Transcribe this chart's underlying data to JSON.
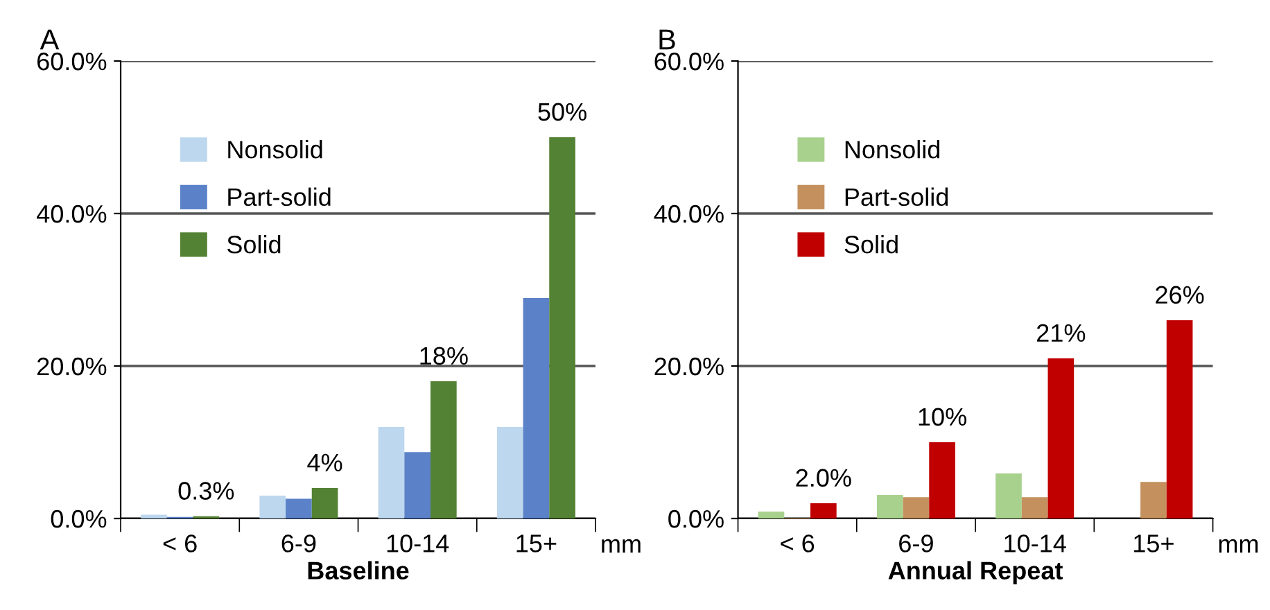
{
  "chart_data": [
    {
      "type": "bar",
      "title": "A",
      "xlabel": "Baseline",
      "categories": [
        "< 6",
        "6-9",
        "10-14",
        "15+"
      ],
      "ylim": [
        0,
        60
      ],
      "yticks": [
        {
          "value": 0,
          "label": "0.0%"
        },
        {
          "value": 20,
          "label": "20.0%"
        },
        {
          "value": 40,
          "label": "40.0%"
        },
        {
          "value": 60,
          "label": "60.0%"
        }
      ],
      "grid": "y",
      "legend": "top left",
      "annotations": [
        "mm"
      ],
      "series": [
        {
          "name": "Nonsolid",
          "color": "#bdd7ee",
          "values": [
            0.5,
            3.0,
            12,
            12
          ]
        },
        {
          "name": "Part-solid",
          "color": "#5b82c8",
          "values": [
            0.2,
            2.6,
            8.7,
            28.9
          ]
        },
        {
          "name": "Solid",
          "color": "#548235",
          "values": [
            0.3,
            4,
            18,
            50
          ],
          "value_labels": [
            "0.3%",
            "4%",
            "18%",
            "50%"
          ]
        }
      ]
    },
    {
      "type": "bar",
      "title": "B",
      "xlabel": "Annual Repeat",
      "categories": [
        "< 6",
        "6-9",
        "10-14",
        "15+"
      ],
      "ylim": [
        0,
        60
      ],
      "yticks": [
        {
          "value": 0,
          "label": "0.0%"
        },
        {
          "value": 20,
          "label": "20.0%"
        },
        {
          "value": 40,
          "label": "40.0%"
        },
        {
          "value": 60,
          "label": "60.0%"
        }
      ],
      "grid": "y",
      "legend": "top left",
      "annotations": [
        "mm"
      ],
      "series": [
        {
          "name": "Nonsolid",
          "color": "#a9d18e",
          "values": [
            0.9,
            3.1,
            5.9,
            0
          ]
        },
        {
          "name": "Part-solid",
          "color": "#c4915e",
          "values": [
            0.1,
            2.8,
            2.8,
            4.8
          ]
        },
        {
          "name": "Solid",
          "color": "#c00000",
          "values": [
            2.0,
            10,
            21,
            26
          ],
          "value_labels": [
            "2.0%",
            "10%",
            "21%",
            "26%"
          ]
        }
      ]
    }
  ]
}
